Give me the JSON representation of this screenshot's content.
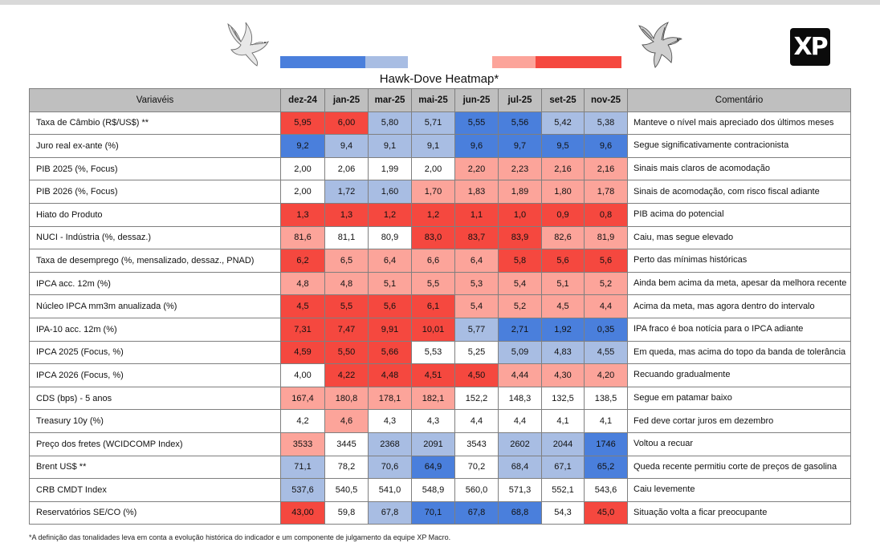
{
  "title": "Hawk-Dove Heatmap*",
  "logo": "XP",
  "footnote": "*A definição das tonalidades leva em conta a evolução histórica do indicador e um componente de julgamento da equipe XP Macro.",
  "colors": {
    "D2": "#4a7fdc",
    "D1": "#a8bde3",
    "N": "#ffffff",
    "H1": "#fca49a",
    "H2": "#f5483f",
    "header": "#bfbfbf"
  },
  "chart_data": {
    "type": "table",
    "title": "Hawk-Dove Heatmap*",
    "header": {
      "label": "Variavéis",
      "comment": "Comentário"
    },
    "columns": [
      "dez-24",
      "jan-25",
      "mar-25",
      "mai-25",
      "jun-25",
      "jul-25",
      "set-25",
      "nov-25"
    ],
    "legend": [
      "D2",
      "D1",
      "H1",
      "H2"
    ],
    "rows": [
      {
        "label": "Taxa de Câmbio (R$/US$) **",
        "values": [
          "5,95",
          "6,00",
          "5,80",
          "5,71",
          "5,55",
          "5,56",
          "5,42",
          "5,38"
        ],
        "tones": [
          "H2",
          "H2",
          "D1",
          "D1",
          "D2",
          "D2",
          "D1",
          "D1"
        ],
        "comment": "Manteve o nível mais apreciado dos últimos meses"
      },
      {
        "label": "Juro real ex-ante (%)",
        "values": [
          "9,2",
          "9,4",
          "9,1",
          "9,1",
          "9,6",
          "9,7",
          "9,5",
          "9,6"
        ],
        "tones": [
          "D2",
          "D1",
          "D1",
          "D1",
          "D2",
          "D2",
          "D2",
          "D2"
        ],
        "comment": "Segue significativamente contracionista"
      },
      {
        "label": "PIB 2025 (%, Focus)",
        "values": [
          "2,00",
          "2,06",
          "1,99",
          "2,00",
          "2,20",
          "2,23",
          "2,16",
          "2,16"
        ],
        "tones": [
          "N",
          "N",
          "N",
          "N",
          "H1",
          "H1",
          "H1",
          "H1"
        ],
        "comment": "Sinais mais claros de acomodação"
      },
      {
        "label": "PIB 2026 (%, Focus)",
        "values": [
          "2,00",
          "1,72",
          "1,60",
          "1,70",
          "1,83",
          "1,89",
          "1,80",
          "1,78"
        ],
        "tones": [
          "N",
          "D1",
          "D1",
          "H1",
          "H1",
          "H1",
          "H1",
          "H1"
        ],
        "comment": "Sinais de acomodação, com risco fiscal adiante"
      },
      {
        "label": "Hiato do Produto",
        "values": [
          "1,3",
          "1,3",
          "1,2",
          "1,2",
          "1,1",
          "1,0",
          "0,9",
          "0,8"
        ],
        "tones": [
          "H2",
          "H2",
          "H2",
          "H2",
          "H2",
          "H2",
          "H2",
          "H2"
        ],
        "comment": "PIB acima do potencial"
      },
      {
        "label": "NUCI - Indústria (%, dessaz.)",
        "values": [
          "81,6",
          "81,1",
          "80,9",
          "83,0",
          "83,7",
          "83,9",
          "82,6",
          "81,9"
        ],
        "tones": [
          "H1",
          "N",
          "N",
          "H2",
          "H2",
          "H2",
          "H1",
          "H1"
        ],
        "comment": "Caiu, mas segue elevado"
      },
      {
        "label": "Taxa de desemprego (%, mensalizado, dessaz., PNAD)",
        "values": [
          "6,2",
          "6,5",
          "6,4",
          "6,6",
          "6,4",
          "5,8",
          "5,6",
          "5,6"
        ],
        "tones": [
          "H2",
          "H1",
          "H1",
          "H1",
          "H1",
          "H2",
          "H2",
          "H2"
        ],
        "comment": "Perto das mínimas históricas"
      },
      {
        "label": "IPCA acc. 12m (%)",
        "values": [
          "4,8",
          "4,8",
          "5,1",
          "5,5",
          "5,3",
          "5,4",
          "5,1",
          "5,2"
        ],
        "tones": [
          "H1",
          "H1",
          "H1",
          "H1",
          "H1",
          "H1",
          "H1",
          "H1"
        ],
        "comment": "Ainda bem acima da meta, apesar da melhora recente"
      },
      {
        "label": "Núcleo IPCA mm3m anualizada (%)",
        "values": [
          "4,5",
          "5,5",
          "5,6",
          "6,1",
          "5,4",
          "5,2",
          "4,5",
          "4,4"
        ],
        "tones": [
          "H2",
          "H2",
          "H2",
          "H2",
          "H1",
          "H1",
          "H1",
          "H1"
        ],
        "comment": "Acima da meta, mas agora dentro do intervalo"
      },
      {
        "label": "IPA-10 acc. 12m (%)",
        "values": [
          "7,31",
          "7,47",
          "9,91",
          "10,01",
          "5,77",
          "2,71",
          "1,92",
          "0,35"
        ],
        "tones": [
          "H2",
          "H2",
          "H2",
          "H2",
          "D1",
          "D2",
          "D2",
          "D2"
        ],
        "comment": "IPA fraco é boa notícia para o IPCA adiante"
      },
      {
        "label": "IPCA 2025 (Focus, %)",
        "values": [
          "4,59",
          "5,50",
          "5,66",
          "5,53",
          "5,25",
          "5,09",
          "4,83",
          "4,55"
        ],
        "tones": [
          "H2",
          "H2",
          "H2",
          "N",
          "N",
          "D1",
          "D1",
          "D1"
        ],
        "comment": "Em queda, mas acima do topo da banda de tolerância"
      },
      {
        "label": "IPCA 2026 (Focus, %)",
        "values": [
          "4,00",
          "4,22",
          "4,48",
          "4,51",
          "4,50",
          "4,44",
          "4,30",
          "4,20"
        ],
        "tones": [
          "N",
          "H2",
          "H2",
          "H2",
          "H2",
          "H1",
          "H1",
          "H1"
        ],
        "comment": "Recuando gradualmente"
      },
      {
        "label": "CDS (bps) - 5 anos",
        "values": [
          "167,4",
          "180,8",
          "178,1",
          "182,1",
          "152,2",
          "148,3",
          "132,5",
          "138,5"
        ],
        "tones": [
          "H1",
          "H1",
          "H1",
          "H1",
          "N",
          "N",
          "N",
          "N"
        ],
        "comment": "Segue em patamar baixo"
      },
      {
        "label": "Treasury 10y (%)",
        "values": [
          "4,2",
          "4,6",
          "4,3",
          "4,3",
          "4,4",
          "4,4",
          "4,1",
          "4,1"
        ],
        "tones": [
          "N",
          "H1",
          "N",
          "N",
          "N",
          "N",
          "N",
          "N"
        ],
        "comment": "Fed deve cortar juros em dezembro"
      },
      {
        "label": "Preço dos fretes (WCIDCOMP Index)",
        "values": [
          "3533",
          "3445",
          "2368",
          "2091",
          "3543",
          "2602",
          "2044",
          "1746"
        ],
        "tones": [
          "H1",
          "N",
          "D1",
          "D1",
          "N",
          "D1",
          "D1",
          "D2"
        ],
        "comment": "Voltou a recuar"
      },
      {
        "label": "Brent US$ **",
        "values": [
          "71,1",
          "78,2",
          "70,6",
          "64,9",
          "70,2",
          "68,4",
          "67,1",
          "65,2"
        ],
        "tones": [
          "D1",
          "N",
          "D1",
          "D2",
          "N",
          "D1",
          "D1",
          "D2"
        ],
        "comment": "Queda recente permitiu corte de preços de gasolina"
      },
      {
        "label": "CRB CMDT Index",
        "values": [
          "537,6",
          "540,5",
          "541,0",
          "548,9",
          "560,0",
          "571,3",
          "552,1",
          "543,6"
        ],
        "tones": [
          "D1",
          "N",
          "N",
          "N",
          "N",
          "N",
          "N",
          "N"
        ],
        "comment": "Caiu levemente"
      },
      {
        "label": "Reservatórios SE/CO (%)",
        "values": [
          "43,00",
          "59,8",
          "67,8",
          "70,1",
          "67,8",
          "68,8",
          "54,3",
          "45,0"
        ],
        "tones": [
          "H2",
          "N",
          "D1",
          "D2",
          "D2",
          "D2",
          "N",
          "H2"
        ],
        "comment": "Situação volta a ficar preocupante"
      }
    ]
  }
}
